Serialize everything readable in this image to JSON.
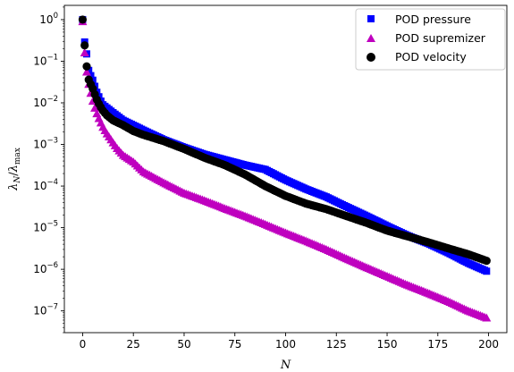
{
  "chart_data": {
    "type": "scatter",
    "xlabel": "N",
    "ylabel": {
      "lambda": "λ",
      "sub": "N",
      "slash": "/",
      "lambda2": "λ",
      "sub2": "max"
    },
    "xlim": [
      -9,
      209
    ],
    "ylim": [
      3e-08,
      2.2
    ],
    "yscale": "log",
    "legend_position": "top-right",
    "x_ticks": [
      {
        "value": 0,
        "label": "0"
      },
      {
        "value": 25,
        "label": "25"
      },
      {
        "value": 50,
        "label": "50"
      },
      {
        "value": 75,
        "label": "75"
      },
      {
        "value": 100,
        "label": "100"
      },
      {
        "value": 125,
        "label": "125"
      },
      {
        "value": 150,
        "label": "150"
      },
      {
        "value": 175,
        "label": "175"
      },
      {
        "value": 200,
        "label": "200"
      }
    ],
    "y_ticks": [
      {
        "value": 1,
        "base": "10",
        "exp": "0"
      },
      {
        "value": 0.1,
        "base": "10",
        "exp": "−1"
      },
      {
        "value": 0.01,
        "base": "10",
        "exp": "−2"
      },
      {
        "value": 0.001,
        "base": "10",
        "exp": "−3"
      },
      {
        "value": 0.0001,
        "base": "10",
        "exp": "−4"
      },
      {
        "value": 1e-05,
        "base": "10",
        "exp": "−5"
      },
      {
        "value": 1e-06,
        "base": "10",
        "exp": "−6"
      },
      {
        "value": 1e-07,
        "base": "10",
        "exp": "−7"
      }
    ],
    "series": [
      {
        "name": "POD pressure",
        "marker": "square",
        "color": "#0000ff",
        "x": [
          0,
          1,
          2,
          3,
          4,
          5,
          6,
          7,
          8,
          9,
          10,
          15,
          20,
          25,
          30,
          40,
          50,
          60,
          70,
          80,
          90,
          100,
          110,
          120,
          130,
          140,
          150,
          160,
          170,
          180,
          190,
          199
        ],
        "y": [
          1.0,
          0.29,
          0.15,
          0.06,
          0.045,
          0.035,
          0.025,
          0.018,
          0.014,
          0.011,
          0.009,
          0.0058,
          0.0038,
          0.0029,
          0.0022,
          0.0013,
          0.00085,
          0.00058,
          0.00043,
          0.00032,
          0.00025,
          0.00014,
          8.5e-05,
          5.5e-05,
          3.2e-05,
          1.9e-05,
          1.1e-05,
          6.5e-06,
          4.2e-06,
          2.5e-06,
          1.4e-06,
          9e-07
        ]
      },
      {
        "name": "POD supremizer",
        "marker": "triangle",
        "color": "#bf00bf",
        "x": [
          0,
          1,
          2,
          3,
          4,
          5,
          6,
          7,
          8,
          9,
          10,
          12,
          15,
          17,
          20,
          25,
          30,
          40,
          50,
          60,
          70,
          80,
          90,
          100,
          110,
          120,
          130,
          140,
          150,
          160,
          170,
          180,
          190,
          199
        ],
        "y": [
          0.9,
          0.16,
          0.055,
          0.028,
          0.017,
          0.011,
          0.0075,
          0.0055,
          0.0042,
          0.0033,
          0.0026,
          0.0018,
          0.0011,
          0.0008,
          0.00055,
          0.00038,
          0.00022,
          0.00012,
          6.8e-05,
          4.5e-05,
          2.9e-05,
          1.9e-05,
          1.2e-05,
          7.5e-06,
          4.8e-06,
          3e-06,
          1.8e-06,
          1.1e-06,
          6.8e-07,
          4.2e-07,
          2.7e-07,
          1.7e-07,
          1e-07,
          6.8e-08
        ]
      },
      {
        "name": "POD velocity",
        "marker": "circle",
        "color": "#000000",
        "x": [
          0,
          1,
          2,
          3,
          4,
          5,
          6,
          7,
          8,
          9,
          10,
          12,
          15,
          20,
          25,
          30,
          40,
          50,
          60,
          70,
          80,
          90,
          100,
          110,
          120,
          130,
          140,
          150,
          160,
          170,
          180,
          190,
          199
        ],
        "y": [
          1.0,
          0.24,
          0.075,
          0.036,
          0.028,
          0.022,
          0.016,
          0.012,
          0.0095,
          0.0078,
          0.0065,
          0.005,
          0.0038,
          0.0029,
          0.0021,
          0.0017,
          0.0012,
          0.00078,
          0.00048,
          0.00032,
          0.00019,
          0.0001,
          5.8e-05,
          3.8e-05,
          2.8e-05,
          1.9e-05,
          1.3e-05,
          8.5e-06,
          6.2e-06,
          4.5e-06,
          3.2e-06,
          2.3e-06,
          1.6e-06
        ]
      }
    ]
  }
}
